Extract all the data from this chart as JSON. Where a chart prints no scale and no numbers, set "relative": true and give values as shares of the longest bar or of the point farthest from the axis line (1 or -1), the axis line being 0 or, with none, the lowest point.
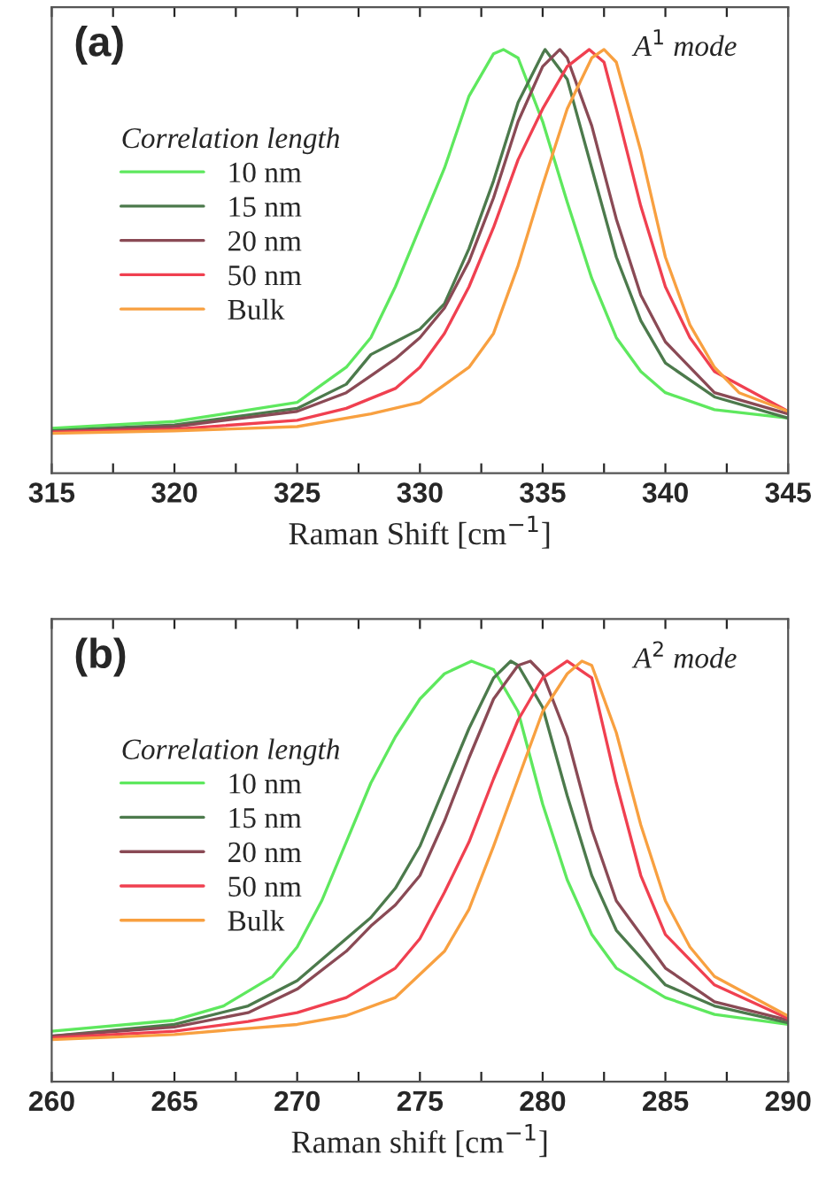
{
  "chart_data": [
    {
      "type": "line",
      "relative": true,
      "annotations": [
        "(a)",
        "A$^{1}$ mode"
      ],
      "xlabel": "Raman Shift [cm$^{−1}$]",
      "legend_title": "Correlation length",
      "legend": "left",
      "grid": false,
      "tick_labels": "x",
      "xlim": [
        315,
        345
      ],
      "xticks": [
        315,
        {
          "value": 317.5,
          "label": null
        },
        320,
        {
          "value": 322.5,
          "label": null
        },
        325,
        {
          "value": 327.5,
          "label": null
        },
        330,
        {
          "value": 332.5,
          "label": null
        },
        335,
        {
          "value": 337.5,
          "label": null
        },
        340,
        {
          "value": 342.5,
          "label": null
        },
        345
      ],
      "series": [
        {
          "name": "10 nm",
          "color": "#5ee85e",
          "x": [
            315,
            320,
            325,
            327,
            328,
            329,
            330,
            331,
            332,
            333,
            333.4,
            334,
            335,
            336,
            337,
            338,
            339,
            340,
            342,
            345
          ],
          "values": [
            0.106,
            0.122,
            0.167,
            0.25,
            0.32,
            0.44,
            0.58,
            0.72,
            0.89,
            0.99,
            1.0,
            0.98,
            0.83,
            0.64,
            0.46,
            0.32,
            0.24,
            0.19,
            0.15,
            0.13
          ]
        },
        {
          "name": "15 nm",
          "color": "#4c7a4c",
          "x": [
            315,
            320,
            325,
            327,
            328,
            329,
            330,
            331,
            332,
            333,
            334,
            335,
            335.1,
            336,
            337,
            338,
            339,
            340,
            342,
            345
          ],
          "values": [
            0.1,
            0.114,
            0.153,
            0.21,
            0.28,
            0.31,
            0.34,
            0.4,
            0.53,
            0.69,
            0.875,
            0.99,
            1.0,
            0.93,
            0.72,
            0.51,
            0.36,
            0.26,
            0.18,
            0.13
          ]
        },
        {
          "name": "20 nm",
          "color": "#8a4a55",
          "x": [
            315,
            320,
            325,
            327,
            328,
            329,
            330,
            331,
            332,
            333,
            334,
            335,
            335.7,
            336,
            337,
            338,
            339,
            340,
            342,
            345
          ],
          "values": [
            0.097,
            0.11,
            0.146,
            0.19,
            0.23,
            0.27,
            0.32,
            0.39,
            0.5,
            0.65,
            0.83,
            0.96,
            1.0,
            0.98,
            0.82,
            0.6,
            0.42,
            0.31,
            0.19,
            0.14
          ]
        },
        {
          "name": "50 nm",
          "color": "#f04050",
          "x": [
            315,
            320,
            325,
            327,
            329,
            330,
            331,
            332,
            333,
            334,
            335,
            336,
            336.9,
            337.5,
            338,
            339,
            340,
            341,
            342,
            345
          ],
          "values": [
            0.097,
            0.104,
            0.125,
            0.153,
            0.2,
            0.25,
            0.33,
            0.44,
            0.58,
            0.74,
            0.86,
            0.96,
            1.0,
            0.97,
            0.86,
            0.63,
            0.44,
            0.32,
            0.24,
            0.146
          ]
        },
        {
          "name": "Bulk",
          "color": "#f8a040",
          "x": [
            315,
            320,
            325,
            328,
            330,
            332,
            333,
            334,
            335,
            336,
            337,
            337.5,
            338,
            339,
            340,
            341,
            342,
            343,
            345
          ],
          "values": [
            0.094,
            0.1,
            0.11,
            0.14,
            0.167,
            0.25,
            0.33,
            0.49,
            0.68,
            0.86,
            0.98,
            1.0,
            0.97,
            0.76,
            0.51,
            0.35,
            0.25,
            0.19,
            0.146
          ]
        }
      ]
    },
    {
      "type": "line",
      "relative": true,
      "annotations": [
        "(b)",
        "A$^{2}$ mode"
      ],
      "xlabel": "Raman shift [cm$^{−1}$]",
      "legend_title": "Correlation length",
      "legend": "left",
      "grid": false,
      "tick_labels": "x",
      "xlim": [
        260,
        290
      ],
      "xticks": [
        260,
        {
          "value": 262.5,
          "label": null
        },
        265,
        {
          "value": 267.5,
          "label": null
        },
        270,
        {
          "value": 272.5,
          "label": null
        },
        275,
        {
          "value": 277.5,
          "label": null
        },
        280,
        {
          "value": 282.5,
          "label": null
        },
        285,
        {
          "value": 287.5,
          "label": null
        },
        290
      ],
      "series": [
        {
          "name": "10 nm",
          "color": "#5ee85e",
          "x": [
            260,
            265,
            267,
            269,
            270,
            271,
            272,
            273,
            274,
            275,
            276,
            277.1,
            278,
            279,
            280,
            281,
            282,
            283,
            285,
            287,
            290
          ],
          "values": [
            0.12,
            0.146,
            0.18,
            0.25,
            0.32,
            0.43,
            0.57,
            0.71,
            0.82,
            0.91,
            0.97,
            1.0,
            0.98,
            0.88,
            0.66,
            0.48,
            0.35,
            0.27,
            0.2,
            0.16,
            0.136
          ]
        },
        {
          "name": "15 nm",
          "color": "#4c7a4c",
          "x": [
            260,
            265,
            268,
            270,
            272,
            273,
            274,
            275,
            276,
            277,
            278,
            278.7,
            279,
            280,
            281,
            282,
            283,
            285,
            287,
            290
          ],
          "values": [
            0.108,
            0.136,
            0.18,
            0.24,
            0.34,
            0.39,
            0.46,
            0.56,
            0.7,
            0.84,
            0.96,
            1.0,
            0.99,
            0.89,
            0.68,
            0.49,
            0.36,
            0.23,
            0.18,
            0.14
          ]
        },
        {
          "name": "20 nm",
          "color": "#8a4a55",
          "x": [
            260,
            265,
            268,
            270,
            272,
            273,
            274,
            275,
            276,
            277,
            278,
            279,
            279.5,
            280,
            281,
            282,
            283,
            285,
            287,
            290
          ],
          "values": [
            0.108,
            0.13,
            0.164,
            0.22,
            0.31,
            0.37,
            0.42,
            0.49,
            0.62,
            0.77,
            0.91,
            0.99,
            1.0,
            0.97,
            0.82,
            0.6,
            0.43,
            0.27,
            0.19,
            0.146
          ]
        },
        {
          "name": "50 nm",
          "color": "#f04050",
          "x": [
            260,
            265,
            268,
            270,
            272,
            274,
            275,
            276,
            277,
            278,
            279,
            280,
            281,
            282,
            283,
            284,
            285,
            287,
            290
          ],
          "values": [
            0.104,
            0.12,
            0.143,
            0.164,
            0.2,
            0.27,
            0.34,
            0.45,
            0.57,
            0.72,
            0.86,
            0.96,
            1.0,
            0.96,
            0.71,
            0.49,
            0.35,
            0.23,
            0.15
          ]
        },
        {
          "name": "Bulk",
          "color": "#f8a040",
          "x": [
            260,
            265,
            270,
            272,
            274,
            276,
            277,
            278,
            279,
            280,
            281,
            281.6,
            282,
            283,
            284,
            285,
            286,
            287,
            290
          ],
          "values": [
            0.1,
            0.112,
            0.136,
            0.157,
            0.2,
            0.31,
            0.41,
            0.56,
            0.72,
            0.88,
            0.97,
            1.0,
            0.99,
            0.83,
            0.61,
            0.43,
            0.32,
            0.25,
            0.156
          ]
        }
      ]
    }
  ]
}
